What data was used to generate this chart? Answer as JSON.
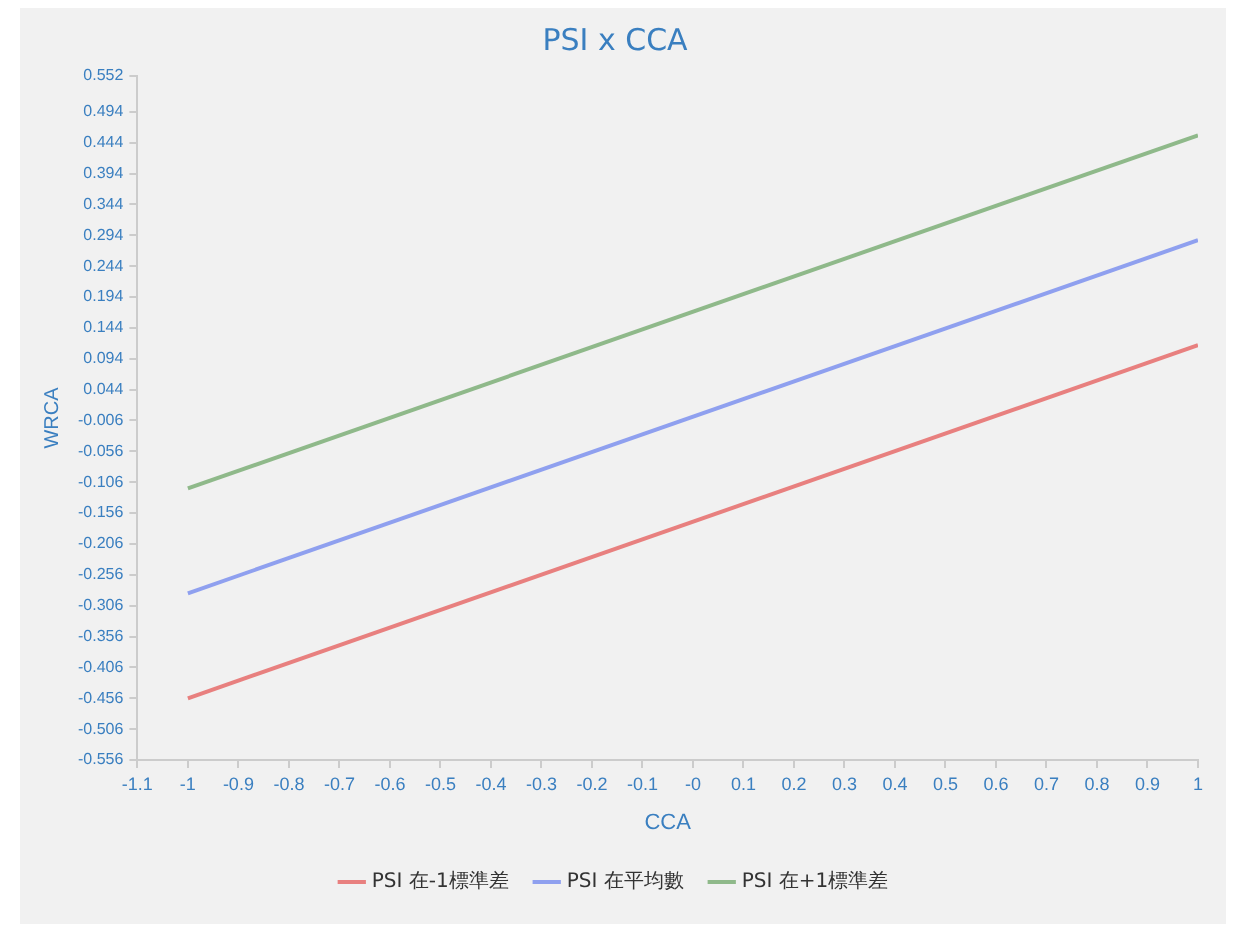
{
  "chart_data": {
    "type": "line",
    "title": "PSI x CCA",
    "xlabel": "CCA",
    "ylabel": "WRCA",
    "x": [
      -1,
      1
    ],
    "series": [
      {
        "name": "PSI 在-1標準差",
        "color": "#e8807f",
        "values": [
          -0.456,
          0.116
        ]
      },
      {
        "name": "PSI 在平均數",
        "color": "#8fa0ef",
        "values": [
          -0.286,
          0.286
        ]
      },
      {
        "name": "PSI 在+1標準差",
        "color": "#8fb98a",
        "values": [
          -0.116,
          0.456
        ]
      }
    ],
    "xlim": [
      -1.1,
      1
    ],
    "xticks": [
      -1.1,
      -1,
      -0.9,
      -0.8,
      -0.7,
      -0.6,
      -0.5,
      -0.4,
      -0.3,
      -0.2,
      -0.1,
      {
        "value": 0,
        "label": "-0"
      },
      0.1,
      0.2,
      0.3,
      0.4,
      0.5,
      0.6,
      0.7,
      0.8,
      0.9,
      1
    ],
    "ylim": [
      -0.556,
      0.552
    ],
    "yticks": [
      -0.556,
      -0.506,
      -0.456,
      -0.406,
      -0.356,
      -0.306,
      -0.256,
      -0.206,
      -0.156,
      -0.106,
      -0.056,
      -0.006,
      0.044,
      0.094,
      0.144,
      0.194,
      0.244,
      0.294,
      0.344,
      0.394,
      0.444,
      0.494,
      0.552
    ],
    "grid": false,
    "legend": "bottom",
    "marker": "none",
    "line_style": "solid"
  }
}
